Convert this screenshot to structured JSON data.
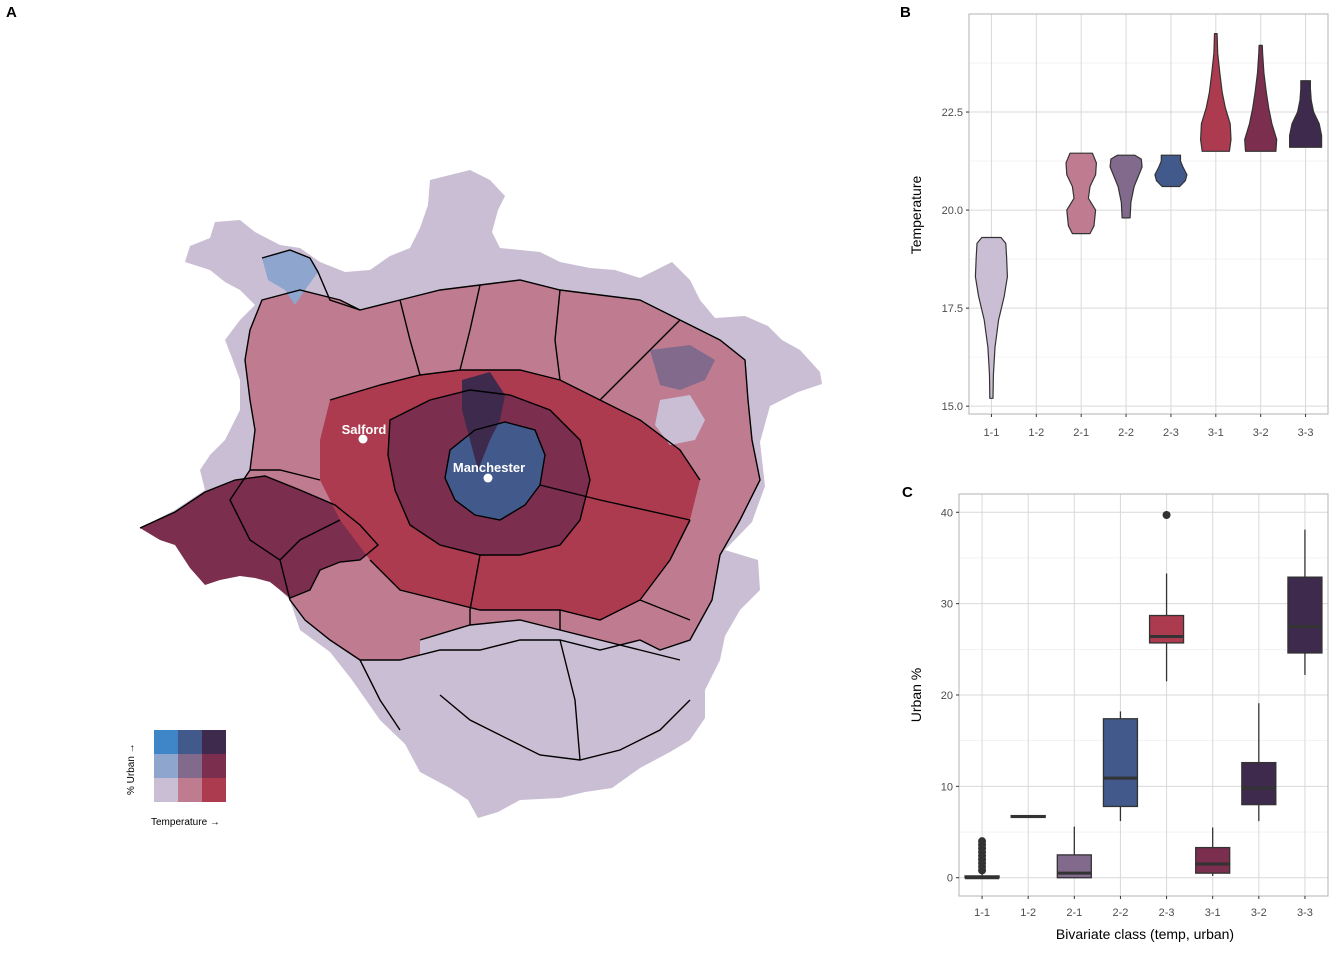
{
  "panels": {
    "a": "A",
    "b": "B",
    "c": "C"
  },
  "map": {
    "cities": [
      {
        "name": "Salford"
      },
      {
        "name": "Manchester"
      }
    ],
    "legend": {
      "x_label": "Temperature →",
      "y_label": "% Urban →",
      "palette": {
        "1-1": "#cabed4",
        "2-1": "#bf7c91",
        "3-1": "#ad3b50",
        "1-2": "#8ea5cd",
        "2-2": "#826a8c",
        "3-2": "#7b2e4e",
        "1-3": "#3f86c9",
        "2-3": "#42598b",
        "3-3": "#3e2a4c"
      }
    }
  },
  "chart_data": [
    {
      "type": "violin",
      "panel": "B",
      "categories": [
        "1-1",
        "1-2",
        "2-1",
        "2-2",
        "2-3",
        "3-1",
        "3-2",
        "3-3"
      ],
      "ylabel": "Temperature",
      "xlabel": "",
      "ylim": [
        14.8,
        25.0
      ],
      "yticks": [
        15.0,
        17.5,
        20.0,
        22.5
      ],
      "grid": true,
      "series": [
        {
          "category": "1-1",
          "color": "#cabed4",
          "profile": [
            [
              15.2,
              0.1
            ],
            [
              15.8,
              0.12
            ],
            [
              16.5,
              0.22
            ],
            [
              17.2,
              0.45
            ],
            [
              17.8,
              0.8
            ],
            [
              18.3,
              1.0
            ],
            [
              18.8,
              0.95
            ],
            [
              19.15,
              0.9
            ],
            [
              19.3,
              0.6
            ]
          ]
        },
        {
          "category": "1-2",
          "color": "#8ea5cd",
          "profile": []
        },
        {
          "category": "2-1",
          "color": "#bf7c91",
          "profile": [
            [
              19.4,
              0.55
            ],
            [
              19.6,
              0.8
            ],
            [
              20.0,
              0.9
            ],
            [
              20.3,
              0.45
            ],
            [
              20.6,
              0.55
            ],
            [
              20.9,
              0.9
            ],
            [
              21.2,
              0.95
            ],
            [
              21.45,
              0.7
            ]
          ]
        },
        {
          "category": "2-2",
          "color": "#826a8c",
          "profile": [
            [
              19.8,
              0.25
            ],
            [
              20.2,
              0.3
            ],
            [
              20.6,
              0.5
            ],
            [
              20.9,
              0.8
            ],
            [
              21.1,
              1.0
            ],
            [
              21.3,
              0.95
            ],
            [
              21.4,
              0.55
            ]
          ]
        },
        {
          "category": "2-3",
          "color": "#42598b",
          "profile": [
            [
              20.6,
              0.55
            ],
            [
              20.75,
              0.9
            ],
            [
              20.9,
              1.0
            ],
            [
              21.1,
              0.75
            ],
            [
              21.25,
              0.6
            ],
            [
              21.4,
              0.6
            ]
          ]
        },
        {
          "category": "3-1",
          "color": "#ad3b50",
          "profile": [
            [
              21.5,
              0.85
            ],
            [
              21.8,
              0.95
            ],
            [
              22.2,
              0.9
            ],
            [
              22.6,
              0.6
            ],
            [
              23.0,
              0.4
            ],
            [
              23.5,
              0.25
            ],
            [
              24.0,
              0.12
            ],
            [
              24.5,
              0.08
            ]
          ]
        },
        {
          "category": "3-2",
          "color": "#7b2e4e",
          "profile": [
            [
              21.5,
              0.95
            ],
            [
              21.8,
              1.0
            ],
            [
              22.2,
              0.7
            ],
            [
              22.6,
              0.5
            ],
            [
              23.0,
              0.35
            ],
            [
              23.5,
              0.2
            ],
            [
              24.0,
              0.12
            ],
            [
              24.2,
              0.1
            ]
          ]
        },
        {
          "category": "3-3",
          "color": "#3e2a4c",
          "profile": [
            [
              21.6,
              1.0
            ],
            [
              21.9,
              1.0
            ],
            [
              22.2,
              0.85
            ],
            [
              22.5,
              0.5
            ],
            [
              22.8,
              0.35
            ],
            [
              23.1,
              0.3
            ],
            [
              23.3,
              0.3
            ]
          ]
        }
      ]
    },
    {
      "type": "box",
      "panel": "C",
      "categories": [
        "1-1",
        "1-2",
        "2-1",
        "2-2",
        "2-3",
        "3-1",
        "3-2",
        "3-3"
      ],
      "xlabel": "Bivariate class (temp, urban)",
      "ylabel": "Urban %",
      "ylim": [
        -2,
        42
      ],
      "yticks": [
        0,
        10,
        20,
        30,
        40
      ],
      "grid": true,
      "series": [
        {
          "category": "1-1",
          "color": "#cabed4",
          "min": 0,
          "q1": 0,
          "median": 0,
          "q3": 0.2,
          "max": 0.5,
          "outliers": [
            0.8,
            1.2,
            1.6,
            2.0,
            2.4,
            2.8,
            3.2,
            3.6,
            4.0
          ]
        },
        {
          "category": "1-2",
          "color": "#8ea5cd",
          "min": 6.6,
          "q1": 6.6,
          "median": 6.7,
          "q3": 6.8,
          "max": 6.8,
          "outliers": []
        },
        {
          "category": "2-1",
          "color": "#826a8c",
          "min": 0,
          "q1": 0,
          "median": 0.5,
          "q3": 2.5,
          "max": 5.6,
          "outliers": []
        },
        {
          "category": "2-2",
          "color": "#42598b",
          "min": 6.2,
          "q1": 7.8,
          "median": 10.9,
          "q3": 17.4,
          "max": 18.2,
          "outliers": []
        },
        {
          "category": "2-3",
          "color": "#ad3b50",
          "min": 21.5,
          "q1": 25.7,
          "median": 26.4,
          "q3": 28.7,
          "max": 33.3,
          "outliers": [
            39.7
          ]
        },
        {
          "category": "3-1",
          "color": "#7b2e4e",
          "min": 0.2,
          "q1": 0.5,
          "median": 1.5,
          "q3": 3.3,
          "max": 5.5,
          "outliers": []
        },
        {
          "category": "3-2",
          "color": "#3e2a4c",
          "min": 6.2,
          "q1": 8.0,
          "median": 9.8,
          "q3": 12.6,
          "max": 19.1,
          "outliers": []
        },
        {
          "category": "3-3",
          "color": "#3e2a4c",
          "min": 22.2,
          "q1": 24.6,
          "median": 27.5,
          "q3": 32.9,
          "max": 38.1,
          "outliers": []
        }
      ]
    }
  ]
}
